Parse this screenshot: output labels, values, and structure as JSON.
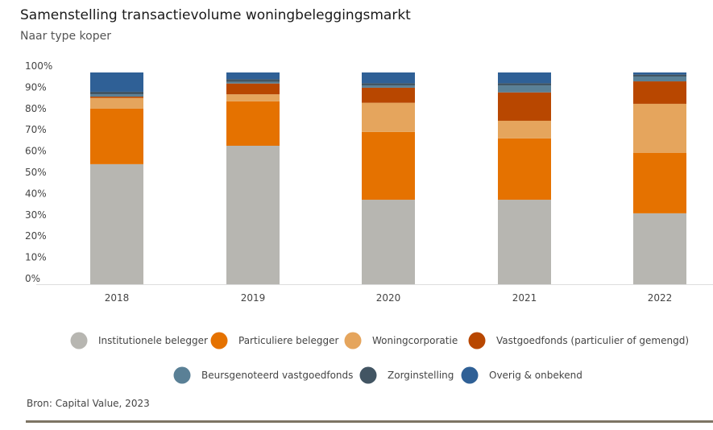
{
  "header": {
    "title": "Samenstelling transactievolume woningbeleggingsmarkt",
    "subtitle": "Naar type koper"
  },
  "source": "Bron: Capital Value, 2023",
  "chart_data": {
    "type": "bar",
    "stacked": true,
    "title": "Samenstelling transactievolume woningbeleggingsmarkt",
    "subtitle": "Naar type koper",
    "categories": [
      "2018",
      "2019",
      "2020",
      "2021",
      "2022"
    ],
    "ylim": [
      0,
      100
    ],
    "y_ticks": [
      "0%",
      "10%",
      "20%",
      "30%",
      "40%",
      "50%",
      "60%",
      "70%",
      "80%",
      "90%",
      "100%"
    ],
    "grid": false,
    "legend_placement": "bottom",
    "series": [
      {
        "name": "Institutionele belegger",
        "color": "#b7b6b1",
        "values": [
          56.7,
          65.4,
          39.9,
          39.9,
          33.5
        ]
      },
      {
        "name": "Particuliere belegger",
        "color": "#e57200",
        "values": [
          26.2,
          21.0,
          32.0,
          29.0,
          28.6
        ]
      },
      {
        "name": "Woningcorporatie",
        "color": "#e5a55d",
        "values": [
          5.1,
          3.3,
          13.8,
          8.3,
          23.1
        ]
      },
      {
        "name": "Vastgoedfonds (particulier of gemengd)",
        "color": "#b84700",
        "values": [
          0.6,
          5.1,
          7.1,
          13.4,
          10.6
        ]
      },
      {
        "name": "Beursgenoteerd vastgoedfonds",
        "color": "#5a8096",
        "values": [
          1.1,
          0.8,
          1.1,
          3.3,
          2.3
        ]
      },
      {
        "name": "Zorginstelling",
        "color": "#425563",
        "values": [
          1.2,
          1.2,
          1.0,
          1.0,
          0.9
        ]
      },
      {
        "name": "Overig & onbekend",
        "color": "#2f6096",
        "values": [
          9.1,
          3.2,
          5.1,
          5.1,
          1.0
        ]
      }
    ]
  }
}
